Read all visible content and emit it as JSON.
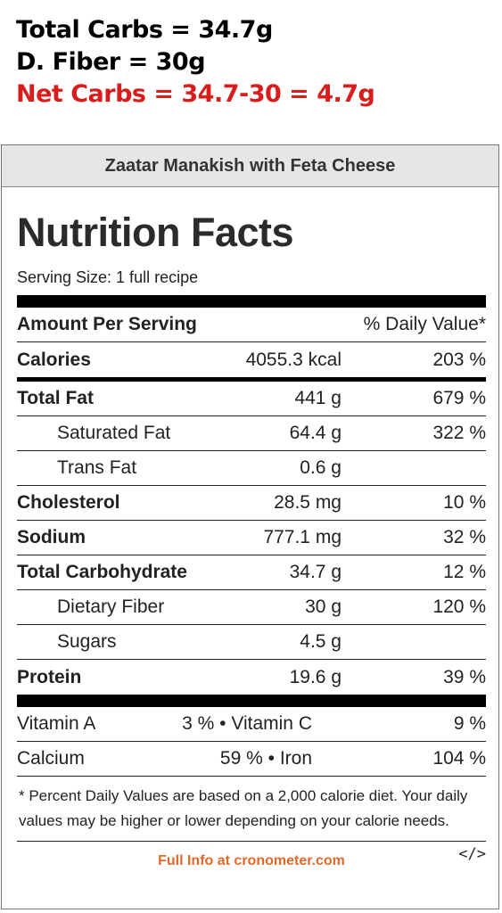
{
  "annotation": {
    "line1": "Total Carbs = 34.7g",
    "line2": "D. Fiber = 30g",
    "line3": "Net Carbs = 34.7-30 = 4.7g",
    "colors": {
      "default": "#000000",
      "highlight": "#d91c1c"
    }
  },
  "recipe_title": "Zaatar Manakish with Feta Cheese",
  "label": {
    "title": "Nutrition Facts",
    "serving_size": "Serving Size: 1 full recipe",
    "amount_header": "Amount Per Serving",
    "dv_header": "% Daily Value*",
    "calories": {
      "name": "Calories",
      "amount": "4055.3 kcal",
      "dv": "203 %"
    },
    "rows": [
      {
        "name": "Total Fat",
        "amount": "441 g",
        "dv": "679 %"
      },
      {
        "name": "Saturated Fat",
        "amount": "64.4 g",
        "dv": "322 %"
      },
      {
        "name": "Trans Fat",
        "amount": "0.6 g",
        "dv": ""
      },
      {
        "name": "Cholesterol",
        "amount": "28.5 mg",
        "dv": "10 %"
      },
      {
        "name": "Sodium",
        "amount": "777.1 mg",
        "dv": "32 %"
      },
      {
        "name": "Total Carbohydrate",
        "amount": "34.7 g",
        "dv": "12 %"
      },
      {
        "name": "Dietary Fiber",
        "amount": "30 g",
        "dv": "120 %"
      },
      {
        "name": "Sugars",
        "amount": "4.5 g",
        "dv": ""
      },
      {
        "name": "Protein",
        "amount": "19.6 g",
        "dv": "39 %"
      }
    ],
    "vitamins": [
      {
        "name1": "Vitamin A",
        "val1": "3 % •",
        "name2": "Vitamin C",
        "val2": "9 %"
      },
      {
        "name1": "Calcium",
        "val1": "59 % •",
        "name2": "Iron",
        "val2": "104 %"
      }
    ],
    "footnote": "* Percent Daily Values are based on a 2,000 calorie diet. Your daily values may be higher or lower depending on your calorie needs.",
    "full_info_link": "Full Info at cronometer.com",
    "embed_icon": "</>",
    "link_color": "#e0692a"
  }
}
